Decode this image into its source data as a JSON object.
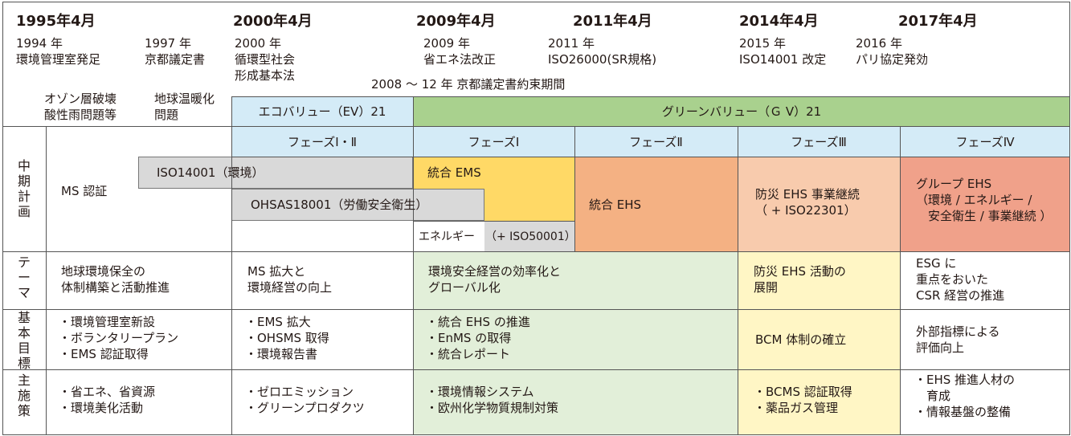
{
  "header_years": [
    "1995年4月",
    "2000年4月",
    "2009年4月",
    "2011年4月",
    "2014年4月",
    "2017年4月"
  ],
  "events": [
    {
      "year": "1994 年",
      "text": "環境管理室発足"
    },
    {
      "year": "1997 年",
      "text": "京都議定書"
    },
    {
      "year": "2000 年",
      "text": "循環型社会\n形成基本法"
    },
    {
      "year": "2009 年",
      "text": "省エネ法改正"
    },
    {
      "year": "2011 年",
      "text": "ISO26000(SR規格)"
    },
    {
      "year": "2015 年",
      "text": "ISO14001 改定"
    },
    {
      "year": "2016 年",
      "text": "パリ協定発効"
    }
  ],
  "kyoto_period": "2008 ～ 12 年 京都議定書約束期間",
  "issues": [
    "オゾン層破壊\n酸性雨問題等",
    "地球温暖化\n問題"
  ],
  "programs": {
    "ev": "エコバリュー（EV）21",
    "gv": "グリーンバリュー（Ｇ V）21"
  },
  "phases": [
    "フェーズⅠ・Ⅱ",
    "フェーズⅠ",
    "フェーズⅡ",
    "フェーズⅢ",
    "フェーズⅣ"
  ],
  "row_labels": {
    "plan": "中\n期\n計\n画",
    "theme": "テ\nー\nマ",
    "goal": "基\n本\n目\n標",
    "measure": "主\n施\n策"
  },
  "plan": {
    "ms": "MS 認証",
    "iso14001": "ISO14001（環境）",
    "ohsas": "OHSAS18001（労働安全衛生）",
    "integrated_ems": "統合 EMS",
    "energy": "エネルギー",
    "iso50001": "（+ ISO50001）",
    "integrated_ehs": "統合 EHS",
    "disaster": "防災 EHS 事業継続\n（ + ISO22301）",
    "group": "グループ EHS\n（環境 / エネルギー /\n　安全衛生 / 事業継続 ）"
  },
  "theme": [
    "地球環境保全の\n体制構築と活動推進",
    "MS 拡大と\n環境経営の向上",
    "環境安全経営の効率化と\nグローバル化",
    "防災 EHS 活動の\n展開",
    "ESG に\n重点をおいた\nCSR 経営の推進"
  ],
  "goals": [
    "・環境管理室新設\n・ボランタリープラン\n・EMS 認証取得",
    "・EMS 拡大\n・OHSMS 取得\n・環境報告書",
    "・統合 EHS の推進\n・EnMS の取得\n・統合レポート",
    "BCM 体制の確立",
    "外部指標による\n評価向上"
  ],
  "measures": [
    "・省エネ、省資源\n・環境美化活動",
    "・ゼロエミッション\n・グリーンプロダクツ",
    "・環境情報システム\n・欧州化学物質規制対策",
    "・BCMS 認証取得\n・薬品ガス管理",
    "・EHS 推進人材の\n　育成\n・情報基盤の整備"
  ],
  "colors": {
    "ev_blue": "#d4ebf7",
    "gv_green": "#a9d18e",
    "grey": "#d9d9d9",
    "yellow": "#ffd966",
    "orange": "#f4b183",
    "salmon": "#f8cbad",
    "red": "#f0a18a",
    "light_green": "#e2efd9",
    "light_yellow": "#fff6c5"
  }
}
